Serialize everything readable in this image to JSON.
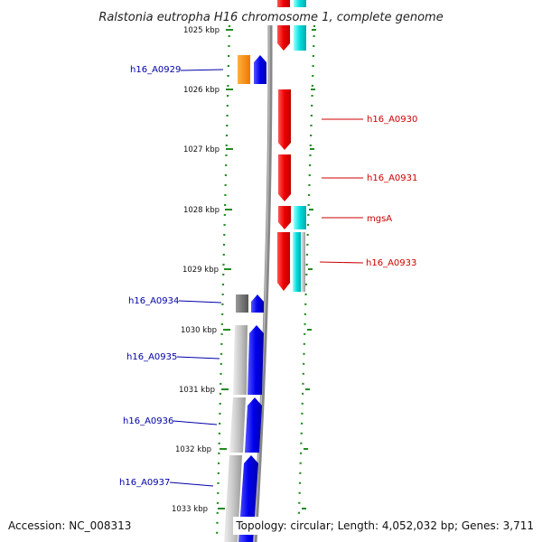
{
  "title": "Ralstonia eutropha H16 chromosome 1, complete genome",
  "footer": {
    "accession": "Accession: NC_008313",
    "summary": "Topology: circular; Length: 4,052,032 bp; Genes: 3,711"
  },
  "ticks": [
    "1025 kbp",
    "1026 kbp",
    "1027 kbp",
    "1028 kbp",
    "1029 kbp",
    "1030 kbp",
    "1031 kbp",
    "1032 kbp",
    "1033 kbp"
  ],
  "gene_labels_left": [
    "h16_A0929",
    "h16_A0934",
    "h16_A0935",
    "h16_A0936",
    "h16_A0937"
  ],
  "gene_labels_right": [
    "h16_A0930",
    "h16_A0931",
    "mgsA",
    "h16_A0933"
  ],
  "colors": {
    "forward_cds": "#0000ee",
    "reverse_cds": "#ee0000",
    "orange_feature": "#ff8c00",
    "cyan_feature": "#00cccc",
    "gray_feature": "#bbbbbb",
    "dark_gray_feature": "#666666",
    "backbone": "#888888",
    "gc_dots": "#228b22",
    "label_left": "#0000aa",
    "label_right": "#cc0000"
  }
}
